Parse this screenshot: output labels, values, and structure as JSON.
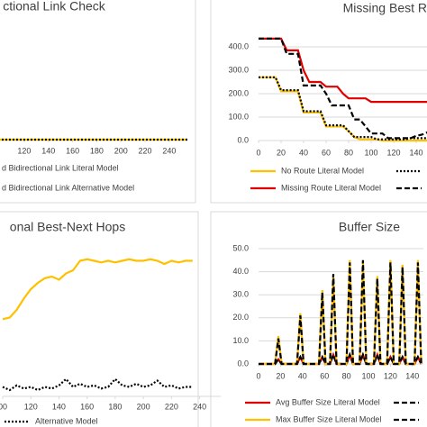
{
  "chart_data": [
    {
      "type": "line",
      "title": "ctional Link Check",
      "x": [
        0,
        255
      ],
      "xlim": [
        0,
        255
      ],
      "xticks": [
        120,
        140,
        160,
        180,
        200,
        220,
        240
      ],
      "ylim": [
        0,
        1
      ],
      "series": [
        {
          "name": "d Bidirectional Link Literal Model",
          "color": "#ffc000",
          "style": "solid",
          "values": [
            0,
            0
          ]
        },
        {
          "name": "d Bidirectional Link Alternative Model",
          "color": "#000000",
          "style": "dotted",
          "values": [
            0,
            0
          ]
        }
      ]
    },
    {
      "type": "line",
      "title": "Missing Best R",
      "x": [
        0,
        5,
        10,
        15,
        20,
        25,
        30,
        35,
        40,
        45,
        50,
        55,
        60,
        65,
        70,
        75,
        80,
        85,
        90,
        95,
        100,
        105,
        110,
        115,
        120,
        125,
        130,
        135,
        140,
        145,
        150
      ],
      "xlim": [
        0,
        150
      ],
      "xticks": [
        0,
        20,
        40,
        60,
        80,
        100,
        120,
        140
      ],
      "ylim": [
        0,
        450
      ],
      "yticks": [
        {
          "value": 0,
          "label": "0.0"
        },
        {
          "value": 100,
          "label": "100.0"
        },
        {
          "value": 200,
          "label": "200.0"
        },
        {
          "value": 300,
          "label": "300.0"
        },
        {
          "value": 400,
          "label": "400.0"
        }
      ],
      "grid": true,
      "series": [
        {
          "name": "No Route Literal Model",
          "color": "#ffc000",
          "style": "solid",
          "values": [
            270,
            270,
            270,
            270,
            210,
            210,
            210,
            210,
            120,
            120,
            120,
            120,
            60,
            60,
            60,
            60,
            40,
            15,
            5,
            5,
            5,
            5,
            0,
            0,
            0,
            0,
            0,
            0,
            0,
            0,
            0
          ]
        },
        {
          "color": "#000000",
          "style": "dotted",
          "values": [
            270,
            270,
            270,
            270,
            215,
            215,
            215,
            215,
            125,
            125,
            125,
            125,
            65,
            65,
            65,
            65,
            40,
            15,
            15,
            15,
            15,
            5,
            5,
            5,
            5,
            5,
            5,
            10,
            10,
            10,
            10
          ]
        },
        {
          "name": "Missing Route Literal Model",
          "color": "#e00000",
          "style": "solid",
          "values": [
            435,
            435,
            435,
            435,
            435,
            385,
            385,
            385,
            300,
            250,
            250,
            250,
            230,
            230,
            230,
            200,
            180,
            180,
            180,
            180,
            165,
            165,
            165,
            165,
            165,
            165,
            165,
            165,
            165,
            165,
            165
          ]
        },
        {
          "color": "#000000",
          "style": "dashed",
          "values": [
            435,
            435,
            435,
            435,
            435,
            370,
            370,
            370,
            235,
            235,
            235,
            235,
            200,
            150,
            150,
            150,
            150,
            90,
            90,
            60,
            30,
            30,
            30,
            10,
            10,
            10,
            10,
            10,
            20,
            25,
            35
          ]
        }
      ]
    },
    {
      "type": "line",
      "title": "onal Best-Next Hops",
      "x": [
        100,
        105,
        110,
        115,
        120,
        125,
        130,
        135,
        140,
        145,
        150,
        155,
        160,
        165,
        170,
        175,
        180,
        185,
        190,
        195,
        200,
        205,
        210,
        215,
        220,
        225,
        230,
        235
      ],
      "xlim": [
        100,
        255
      ],
      "xticks": [
        {
          "value": 100,
          "label": "00"
        },
        120,
        140,
        160,
        180,
        200,
        220,
        240
      ],
      "ylim": [
        0,
        100
      ],
      "series": [
        {
          "color": "#ffc000",
          "style": "solid",
          "values": [
            49,
            50,
            55,
            62,
            68,
            72,
            75,
            76,
            74,
            78,
            80,
            86,
            87,
            86,
            85,
            86,
            85,
            86,
            87,
            86,
            86,
            87,
            86,
            84,
            86,
            85,
            86,
            86
          ]
        },
        {
          "name": "Alternative Model",
          "color": "#000000",
          "style": "dotted",
          "values": [
            6,
            4,
            7,
            5,
            6,
            4,
            6,
            5,
            7,
            11,
            6,
            8,
            6,
            7,
            5,
            6,
            11,
            7,
            6,
            8,
            6,
            7,
            10,
            6,
            7,
            5,
            6,
            6
          ]
        }
      ]
    },
    {
      "type": "line",
      "title": "Buffer Size",
      "x": [
        0,
        15,
        18,
        21,
        35,
        38,
        41,
        55,
        58,
        61,
        65,
        68,
        71,
        80,
        83,
        86,
        92,
        95,
        98,
        105,
        108,
        111,
        117,
        120,
        123,
        128,
        131,
        134,
        142,
        145,
        148
      ],
      "xlim": [
        0,
        150
      ],
      "xticks": [
        0,
        20,
        40,
        60,
        80,
        100,
        120,
        140
      ],
      "ylim": [
        0,
        50
      ],
      "yticks": [
        {
          "value": 0,
          "label": "0.0"
        },
        {
          "value": 10,
          "label": "10.0"
        },
        {
          "value": 20,
          "label": "20.0"
        },
        {
          "value": 30,
          "label": "30.0"
        },
        {
          "value": 40,
          "label": "40.0"
        },
        {
          "value": 50,
          "label": "50.0"
        }
      ],
      "grid": true,
      "series": [
        {
          "name": "Avg Buffer Size Literal Model",
          "color": "#e00000",
          "style": "solid",
          "values": [
            0,
            0,
            2,
            0,
            0,
            3,
            0,
            0,
            3,
            0,
            0,
            4,
            0,
            0,
            4,
            0,
            0,
            4,
            0,
            0,
            4,
            0,
            0,
            3,
            0,
            0,
            3,
            0,
            0,
            3,
            0
          ]
        },
        {
          "color": "#000000",
          "style": "dashed",
          "values": [
            0,
            0,
            2,
            0,
            0,
            3,
            0,
            0,
            3,
            0,
            0,
            4,
            0,
            0,
            4,
            0,
            0,
            4,
            0,
            0,
            4,
            0,
            0,
            3,
            0,
            0,
            3,
            0,
            0,
            3,
            0
          ]
        },
        {
          "name": "Max Buffer Size Literal Model",
          "color": "#ffc000",
          "style": "solid",
          "values": [
            0,
            0,
            12,
            0,
            0,
            22,
            0,
            0,
            32,
            0,
            0,
            38,
            0,
            0,
            45,
            0,
            0,
            44,
            0,
            0,
            38,
            0,
            0,
            45,
            0,
            0,
            43,
            0,
            0,
            45,
            0
          ]
        },
        {
          "color": "#000000",
          "style": "dashed",
          "values": [
            0,
            0,
            11,
            0,
            0,
            21,
            0,
            0,
            31,
            0,
            0,
            39,
            0,
            0,
            44,
            0,
            0,
            45,
            0,
            0,
            37,
            0,
            0,
            44,
            0,
            0,
            42,
            0,
            0,
            44,
            0
          ]
        }
      ]
    }
  ]
}
